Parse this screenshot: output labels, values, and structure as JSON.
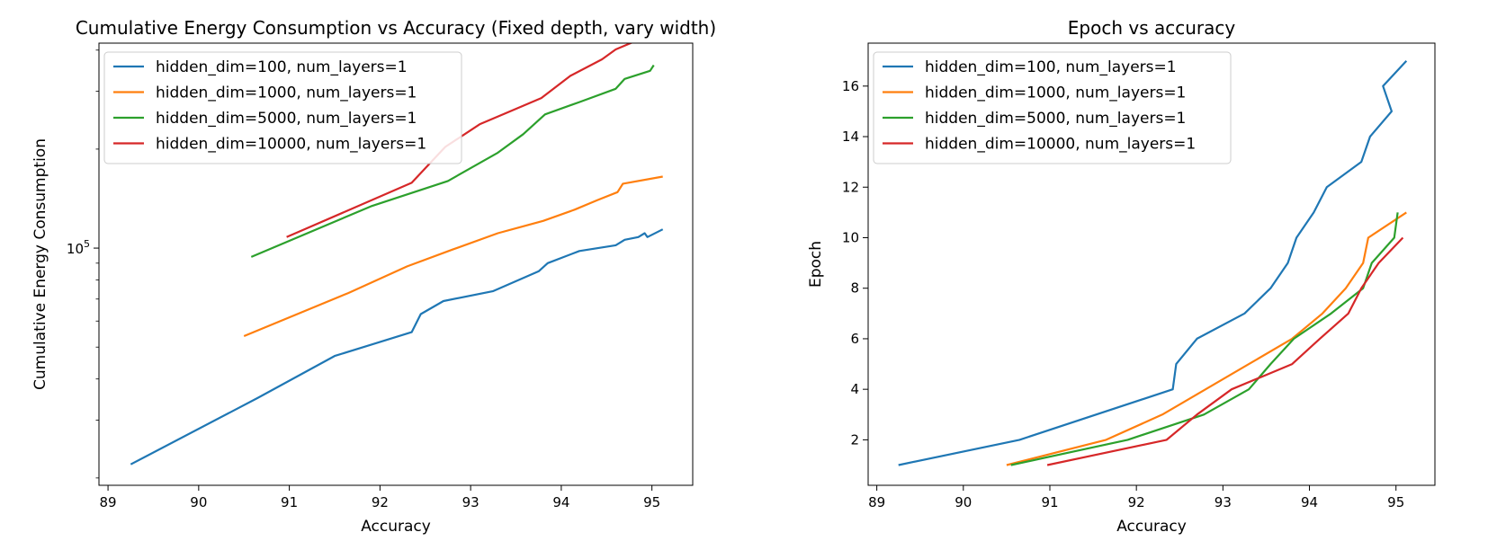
{
  "chart_data": [
    {
      "type": "line",
      "title": "Cumulative Energy Consumption vs Accuracy (Fixed depth, vary width)",
      "xlabel": "Accuracy",
      "ylabel": "Cumulative Energy Consumption",
      "yscale": "log",
      "xlim": [
        88.9,
        95.45
      ],
      "ylim": [
        19000,
        420000
      ],
      "xticks": [
        89,
        90,
        91,
        92,
        93,
        94,
        95
      ],
      "xtick_labels": [
        "89",
        "90",
        "91",
        "92",
        "93",
        "94",
        "95"
      ],
      "yticks": [
        100000
      ],
      "ytick_labels": [
        "10^5"
      ],
      "grid": false,
      "legend_position": "top-left",
      "series": [
        {
          "name": "hidden_dim=100, num_layers=1",
          "color": "#1f77b4",
          "x": [
            89.25,
            90.65,
            91.5,
            92.35,
            92.45,
            92.7,
            93.25,
            93.75,
            93.85,
            94.2,
            94.6,
            94.7,
            94.85,
            94.92,
            94.95,
            95.12
          ],
          "y": [
            22000,
            35000,
            47000,
            55500,
            63000,
            69000,
            74000,
            85000,
            90000,
            98000,
            102000,
            106000,
            108000,
            111000,
            108000,
            114000
          ]
        },
        {
          "name": "hidden_dim=1000, num_layers=1",
          "color": "#ff7f0e",
          "x": [
            90.5,
            91.65,
            92.3,
            92.8,
            93.3,
            93.8,
            94.15,
            94.4,
            94.62,
            94.68,
            95.12
          ],
          "y": [
            54000,
            73000,
            88000,
            99000,
            111000,
            121000,
            131000,
            140000,
            148000,
            157000,
            165000
          ]
        },
        {
          "name": "hidden_dim=5000, num_layers=1",
          "color": "#2ca02c",
          "x": [
            90.58,
            91.9,
            92.75,
            93.3,
            93.58,
            93.82,
            94.2,
            94.6,
            94.7,
            94.98,
            95.02
          ],
          "y": [
            94000,
            134000,
            160000,
            195000,
            222000,
            255000,
            278000,
            305000,
            327000,
            346000,
            360000
          ]
        },
        {
          "name": "hidden_dim=10000, num_layers=1",
          "color": "#d62728",
          "x": [
            90.97,
            92.35,
            92.72,
            93.1,
            93.78,
            94.1,
            94.45,
            94.6,
            94.8,
            95.05
          ],
          "y": [
            108000,
            158000,
            203000,
            238000,
            286000,
            334000,
            375000,
            402000,
            424000,
            446000
          ]
        }
      ]
    },
    {
      "type": "line",
      "title": "Epoch vs accuracy",
      "xlabel": "Accuracy",
      "ylabel": "Epoch",
      "xlim": [
        88.9,
        95.45
      ],
      "ylim": [
        0.2,
        17.7
      ],
      "xticks": [
        89,
        90,
        91,
        92,
        93,
        94,
        95
      ],
      "xtick_labels": [
        "89",
        "90",
        "91",
        "92",
        "93",
        "94",
        "95"
      ],
      "yticks": [
        2,
        4,
        6,
        8,
        10,
        12,
        14,
        16
      ],
      "ytick_labels": [
        "2",
        "4",
        "6",
        "8",
        "10",
        "12",
        "14",
        "16"
      ],
      "grid": false,
      "legend_position": "top-left",
      "series": [
        {
          "name": "hidden_dim=100, num_layers=1",
          "color": "#1f77b4",
          "x": [
            89.25,
            90.65,
            92.42,
            92.46,
            92.7,
            93.25,
            93.55,
            93.75,
            93.85,
            94.05,
            94.2,
            94.6,
            94.7,
            94.95,
            94.85,
            95.12
          ],
          "y": [
            1,
            2,
            4,
            5,
            6,
            7,
            8,
            9,
            10,
            11,
            12,
            13,
            14,
            15,
            16,
            17
          ]
        },
        {
          "name": "hidden_dim=1000, num_layers=1",
          "color": "#ff7f0e",
          "x": [
            90.5,
            91.65,
            92.3,
            92.8,
            93.3,
            93.8,
            94.15,
            94.42,
            94.62,
            94.68,
            95.12
          ],
          "y": [
            1,
            2,
            3,
            4,
            5,
            6,
            7,
            8,
            9,
            10,
            11
          ]
        },
        {
          "name": "hidden_dim=5000, num_layers=1",
          "color": "#2ca02c",
          "x": [
            90.55,
            91.9,
            92.78,
            93.3,
            93.55,
            93.82,
            94.25,
            94.62,
            94.72,
            94.98,
            95.02
          ],
          "y": [
            1,
            2,
            3,
            4,
            5,
            6,
            7,
            8,
            9,
            10,
            11
          ]
        },
        {
          "name": "hidden_dim=10000, num_layers=1",
          "color": "#d62728",
          "x": [
            90.97,
            92.35,
            92.7,
            93.1,
            93.8,
            94.12,
            94.45,
            94.6,
            94.8,
            95.08
          ],
          "y": [
            1,
            2,
            3,
            4,
            5,
            6,
            7,
            8,
            9,
            10
          ]
        }
      ]
    }
  ]
}
